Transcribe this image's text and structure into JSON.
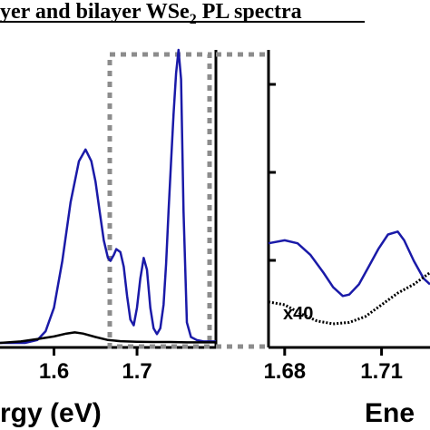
{
  "figure": {
    "title_main": "yer and bilayer WSe",
    "title_sub": "2",
    "title_tail": " PL spectra",
    "colors": {
      "monolayer": "#1a1aa8",
      "bilayer": "#000000",
      "zoom_box": "#8c8c8c"
    }
  },
  "chart_data": [
    {
      "type": "line",
      "title": "yer and bilayer WSe2 PL spectra",
      "xlabel": "rgy (eV)",
      "ylabel": "",
      "xlim": [
        1.535,
        1.795
      ],
      "ylim": [
        0,
        1.0
      ],
      "x_ticks": [
        1.6,
        1.7
      ],
      "x_tick_labels": [
        "1.6",
        "1.7"
      ],
      "grid": false,
      "legend": "none",
      "series": [
        {
          "color": "#1a1aa8",
          "style": "solid-then-dotted",
          "x": [
            1.535,
            1.55,
            1.565,
            1.58,
            1.59,
            1.6,
            1.61,
            1.62,
            1.63,
            1.638,
            1.645,
            1.65,
            1.655,
            1.66,
            1.665,
            1.668,
            1.672,
            1.675,
            1.68,
            1.684,
            1.688,
            1.692,
            1.696,
            1.7,
            1.704,
            1.708,
            1.712,
            1.716,
            1.72,
            1.724,
            1.728,
            1.732,
            1.735,
            1.738,
            1.741,
            1.744,
            1.747,
            1.75,
            1.753,
            1.756,
            1.76,
            1.765,
            1.772,
            1.78,
            1.795
          ],
          "values": [
            0,
            0,
            0,
            0.01,
            0.04,
            0.12,
            0.28,
            0.48,
            0.62,
            0.66,
            0.62,
            0.55,
            0.45,
            0.35,
            0.29,
            0.28,
            0.3,
            0.32,
            0.31,
            0.26,
            0.16,
            0.08,
            0.06,
            0.12,
            0.22,
            0.29,
            0.25,
            0.12,
            0.05,
            0.03,
            0.05,
            0.13,
            0.27,
            0.45,
            0.62,
            0.78,
            0.92,
            1.0,
            0.9,
            0.45,
            0.07,
            0.02,
            0.01,
            0.005,
            0.005
          ]
        },
        {
          "color": "#000000",
          "style": "solid",
          "x": [
            1.535,
            1.56,
            1.58,
            1.6,
            1.615,
            1.625,
            1.635,
            1.65,
            1.665,
            1.68,
            1.7,
            1.72,
            1.74,
            1.76,
            1.78,
            1.795
          ],
          "values": [
            0,
            0.005,
            0.013,
            0.022,
            0.032,
            0.036,
            0.032,
            0.02,
            0.01,
            0.006,
            0.004,
            0.003,
            0.003,
            0.002,
            0.002,
            0.002
          ]
        }
      ]
    },
    {
      "type": "line",
      "title": "",
      "xlabel": "Ene",
      "ylabel": "",
      "xlim": [
        1.675,
        1.725
      ],
      "ylim": [
        0,
        1.0
      ],
      "x_ticks": [
        1.68,
        1.71
      ],
      "x_tick_labels": [
        "1.68",
        "1.71"
      ],
      "grid": false,
      "legend": "none",
      "annotations": [
        {
          "text": "x40"
        }
      ],
      "series": [
        {
          "color": "#1a1aa8",
          "style": "solid",
          "x": [
            1.675,
            1.68,
            1.684,
            1.688,
            1.692,
            1.695,
            1.698,
            1.7,
            1.703,
            1.706,
            1.709,
            1.712,
            1.715,
            1.717,
            1.72,
            1.723,
            1.725
          ],
          "values": [
            0.34,
            0.35,
            0.34,
            0.3,
            0.24,
            0.19,
            0.16,
            0.165,
            0.2,
            0.26,
            0.32,
            0.37,
            0.38,
            0.35,
            0.28,
            0.22,
            0.2
          ]
        },
        {
          "color": "#000000",
          "style": "dotted",
          "x": [
            1.675,
            1.68,
            1.685,
            1.69,
            1.695,
            1.7,
            1.705,
            1.71,
            1.715,
            1.72,
            1.725
          ],
          "values": [
            0.14,
            0.13,
            0.1,
            0.075,
            0.065,
            0.07,
            0.09,
            0.13,
            0.17,
            0.2,
            0.24
          ]
        }
      ]
    }
  ]
}
